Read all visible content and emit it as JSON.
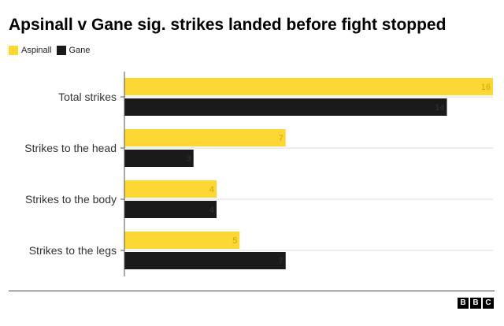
{
  "title": "Apsinall v Gane sig. strikes landed before fight stopped",
  "legend": {
    "items": [
      {
        "label": "Aspinall",
        "color": "#fdd835"
      },
      {
        "label": "Gane",
        "color": "#1a1a1a"
      }
    ]
  },
  "brand": {
    "letters": [
      "B",
      "B",
      "C"
    ]
  },
  "chart_data": {
    "type": "bar",
    "orientation": "horizontal",
    "categories": [
      "Total strikes",
      "Strikes to the head",
      "Strikes to the body",
      "Strikes to the legs"
    ],
    "series": [
      {
        "name": "Aspinall",
        "color": "#fdd835",
        "values": [
          16,
          7,
          4,
          5
        ]
      },
      {
        "name": "Gane",
        "color": "#1a1a1a",
        "values": [
          14,
          3,
          4,
          7
        ]
      }
    ],
    "xlim": [
      0,
      16
    ],
    "grid": true,
    "legend_position": "top-left"
  }
}
